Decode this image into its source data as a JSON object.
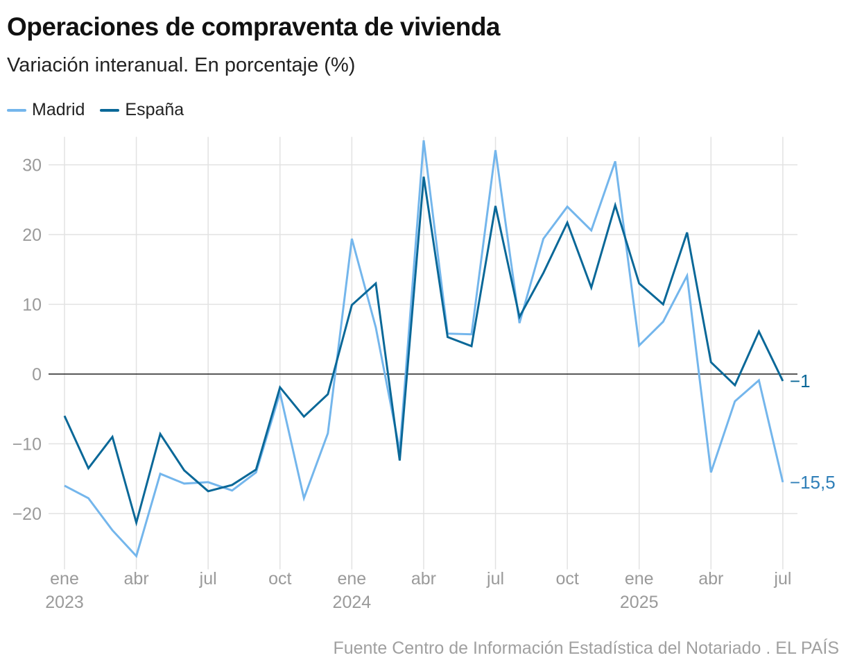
{
  "title": "Operaciones de compraventa de vivienda",
  "subtitle": "Variación interanual. En porcentaje (%)",
  "source": "Fuente Centro de Información Estadística del Notariado . EL PAÍS",
  "chart_data": {
    "type": "line",
    "title": "Operaciones de compraventa de vivienda",
    "subtitle": "Variación interanual. En porcentaje (%)",
    "xlabel": "",
    "ylabel": "",
    "ylim": [
      -27,
      34
    ],
    "yticks": [
      -20,
      -10,
      0,
      10,
      20,
      30
    ],
    "ytick_labels": [
      "−20",
      "−10",
      "0",
      "10",
      "20",
      "30"
    ],
    "x": [
      "2023-01",
      "2023-02",
      "2023-03",
      "2023-04",
      "2023-05",
      "2023-06",
      "2023-07",
      "2023-08",
      "2023-09",
      "2023-10",
      "2023-11",
      "2023-12",
      "2024-01",
      "2024-02",
      "2024-03",
      "2024-04",
      "2024-05",
      "2024-06",
      "2024-07",
      "2024-08",
      "2024-09",
      "2024-10",
      "2024-11",
      "2024-12",
      "2025-01",
      "2025-02",
      "2025-03",
      "2025-04",
      "2025-05",
      "2025-06",
      "2025-07"
    ],
    "xticks": [
      {
        "month": "ene",
        "year": "2023"
      },
      {
        "month": "abr",
        "year": ""
      },
      {
        "month": "jul",
        "year": ""
      },
      {
        "month": "oct",
        "year": ""
      },
      {
        "month": "ene",
        "year": "2024"
      },
      {
        "month": "abr",
        "year": ""
      },
      {
        "month": "jul",
        "year": ""
      },
      {
        "month": "oct",
        "year": ""
      },
      {
        "month": "ene",
        "year": "2025"
      },
      {
        "month": "abr",
        "year": ""
      },
      {
        "month": "jul",
        "year": ""
      }
    ],
    "grid": true,
    "legend_position": "top-left",
    "series": [
      {
        "name": "Madrid",
        "color": "#74b6ec",
        "end_label": "−15,5",
        "end_label_color": "#2f7fb8",
        "values": [
          -16,
          -17.8,
          -22.4,
          -26.1,
          -14.3,
          -15.7,
          -15.5,
          -16.7,
          -14.1,
          -2.7,
          -17.8,
          -8.5,
          19.4,
          6.7,
          -11,
          33.5,
          5.8,
          5.7,
          32.1,
          7.3,
          19.4,
          24,
          20.6,
          30.5,
          4.1,
          7.5,
          14.1,
          -14.1,
          -3.9,
          -0.9,
          -15.5
        ]
      },
      {
        "name": "España",
        "color": "#0a6898",
        "end_label": "−1",
        "end_label_color": "#0a6898",
        "values": [
          -6,
          -13.5,
          -9,
          -21.3,
          -8.6,
          -13.8,
          -16.8,
          -15.9,
          -13.7,
          -1.9,
          -6.1,
          -2.9,
          9.9,
          13,
          -12.4,
          28.3,
          5.3,
          4,
          24.1,
          8.2,
          14.5,
          21.7,
          12.4,
          24.2,
          13,
          10,
          20.3,
          1.7,
          -1.6,
          6.1,
          -1
        ]
      }
    ]
  }
}
